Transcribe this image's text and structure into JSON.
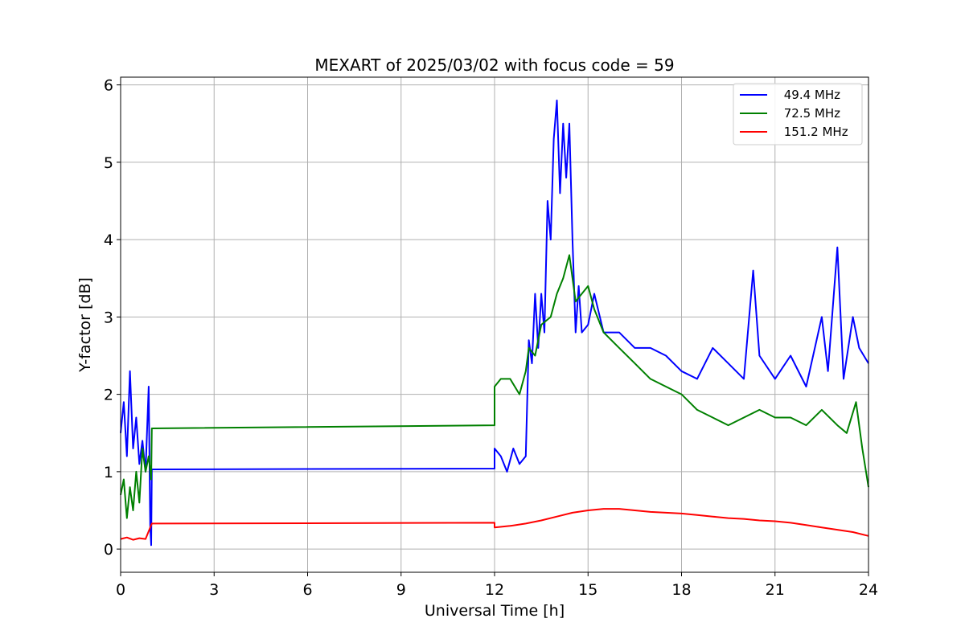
{
  "chart_data": {
    "type": "line",
    "title": "MEXART of 2025/03/02 with focus code = 59",
    "xlabel": "Universal Time [h]",
    "ylabel": "Y-factor [dB]",
    "xlim": [
      0,
      24
    ],
    "ylim": [
      -0.3,
      6.1
    ],
    "xticks": [
      0,
      3,
      6,
      9,
      12,
      15,
      18,
      21,
      24
    ],
    "xtick_labels": [
      "0",
      "3",
      "6",
      "9",
      "12",
      "15",
      "18",
      "21",
      "24"
    ],
    "yticks": [
      0,
      1,
      2,
      3,
      4,
      5,
      6
    ],
    "ytick_labels": [
      "0",
      "1",
      "2",
      "3",
      "4",
      "5",
      "6"
    ],
    "grid": true,
    "legend_position": "top-right",
    "series": [
      {
        "name": " 49.4 MHz",
        "color": "#0000ff",
        "x": [
          0,
          0.1,
          0.2,
          0.3,
          0.4,
          0.5,
          0.6,
          0.7,
          0.8,
          0.9,
          0.95,
          0.98,
          1.0,
          1.0,
          12.0,
          12.0,
          12.2,
          12.4,
          12.6,
          12.8,
          13.0,
          13.1,
          13.2,
          13.3,
          13.4,
          13.5,
          13.6,
          13.7,
          13.8,
          13.9,
          14.0,
          14.1,
          14.2,
          14.3,
          14.4,
          14.5,
          14.6,
          14.7,
          14.8,
          15.0,
          15.2,
          15.5,
          16.0,
          16.5,
          17.0,
          17.5,
          18.0,
          18.5,
          19.0,
          19.5,
          20.0,
          20.3,
          20.5,
          21.0,
          21.5,
          22.0,
          22.5,
          22.7,
          23.0,
          23.2,
          23.5,
          23.7,
          24.0
        ],
        "values": [
          1.5,
          1.9,
          1.2,
          2.3,
          1.3,
          1.7,
          1.1,
          1.4,
          1.0,
          2.1,
          0.3,
          0.05,
          1.03,
          1.03,
          1.04,
          1.3,
          1.2,
          1.0,
          1.3,
          1.1,
          1.2,
          2.7,
          2.4,
          3.3,
          2.6,
          3.3,
          2.8,
          4.5,
          4.0,
          5.3,
          5.8,
          4.6,
          5.5,
          4.8,
          5.5,
          4.0,
          2.8,
          3.4,
          2.8,
          2.9,
          3.3,
          2.8,
          2.8,
          2.6,
          2.6,
          2.5,
          2.3,
          2.2,
          2.6,
          2.4,
          2.2,
          3.6,
          2.5,
          2.2,
          2.5,
          2.1,
          3.0,
          2.3,
          3.9,
          2.2,
          3.0,
          2.6,
          2.4
        ]
      },
      {
        "name": " 72.5 MHz",
        "color": "#008000",
        "x": [
          0,
          0.1,
          0.2,
          0.3,
          0.4,
          0.5,
          0.6,
          0.7,
          0.8,
          0.9,
          0.98,
          1.0,
          1.0,
          12.0,
          12.0,
          12.2,
          12.5,
          12.8,
          13.0,
          13.1,
          13.3,
          13.5,
          13.8,
          14.0,
          14.2,
          14.4,
          14.6,
          14.8,
          15.0,
          15.2,
          15.5,
          16.0,
          16.5,
          17.0,
          17.5,
          18.0,
          18.5,
          19.0,
          19.5,
          20.0,
          20.5,
          21.0,
          21.5,
          22.0,
          22.5,
          23.0,
          23.3,
          23.6,
          23.8,
          24.0
        ],
        "values": [
          0.7,
          0.9,
          0.4,
          0.8,
          0.5,
          1.0,
          0.6,
          1.3,
          1.0,
          1.2,
          0.9,
          1.56,
          1.56,
          1.6,
          2.1,
          2.2,
          2.2,
          2.0,
          2.3,
          2.6,
          2.5,
          2.9,
          3.0,
          3.3,
          3.5,
          3.8,
          3.2,
          3.3,
          3.4,
          3.1,
          2.8,
          2.6,
          2.4,
          2.2,
          2.1,
          2.0,
          1.8,
          1.7,
          1.6,
          1.7,
          1.8,
          1.7,
          1.7,
          1.6,
          1.8,
          1.6,
          1.5,
          1.9,
          1.3,
          0.8
        ]
      },
      {
        "name": " 151.2 MHz",
        "color": "#ff0000",
        "x": [
          0,
          0.2,
          0.4,
          0.6,
          0.8,
          1.0,
          1.0,
          12.0,
          12.0,
          12.5,
          13.0,
          13.5,
          14.0,
          14.5,
          15.0,
          15.5,
          16.0,
          16.5,
          17.0,
          17.5,
          18.0,
          18.5,
          19.0,
          19.5,
          20.0,
          20.5,
          21.0,
          21.5,
          22.0,
          22.5,
          23.0,
          23.5,
          24.0
        ],
        "values": [
          0.13,
          0.15,
          0.12,
          0.14,
          0.13,
          0.33,
          0.33,
          0.34,
          0.28,
          0.3,
          0.33,
          0.37,
          0.42,
          0.47,
          0.5,
          0.52,
          0.52,
          0.5,
          0.48,
          0.47,
          0.46,
          0.44,
          0.42,
          0.4,
          0.39,
          0.37,
          0.36,
          0.34,
          0.31,
          0.28,
          0.25,
          0.22,
          0.17
        ]
      }
    ]
  }
}
